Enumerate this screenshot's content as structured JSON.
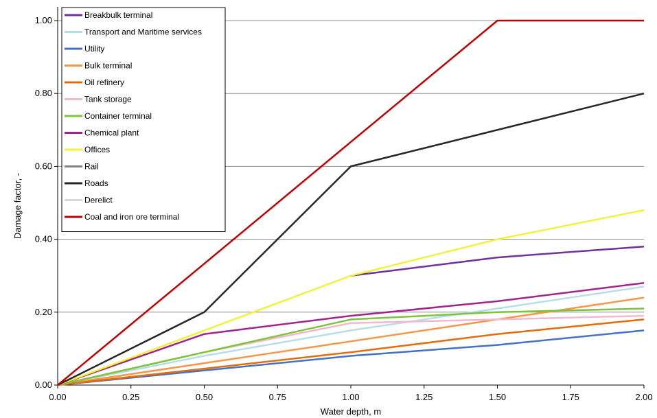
{
  "chart_data": {
    "type": "line",
    "xlabel": "Water depth, m",
    "ylabel": "Damage factor, -",
    "xlim": [
      0,
      2
    ],
    "ylim": [
      0,
      1
    ],
    "x_ticks": [
      "0.00",
      "0.25",
      "0.50",
      "0.75",
      "1.00",
      "1.25",
      "1.50",
      "1.75",
      "2.00"
    ],
    "y_ticks": [
      "0.00",
      "0.20",
      "0.40",
      "0.60",
      "0.80",
      "1.00"
    ],
    "grid": "horizontal",
    "legend_position": "top-left",
    "series": [
      {
        "name": "Breakbulk terminal",
        "color": "#7030A0",
        "x": [
          1.0,
          1.5,
          2.0
        ],
        "y": [
          0.3,
          0.35,
          0.38
        ]
      },
      {
        "name": "Transport and Maritime services",
        "color": "#B7DEE8",
        "x": [
          0,
          0.5,
          1.0,
          1.5,
          2.0
        ],
        "y": [
          0,
          0.08,
          0.15,
          0.21,
          0.27
        ]
      },
      {
        "name": "Utility",
        "color": "#4472C4",
        "x": [
          0,
          0.5,
          1.0,
          1.5,
          2.0
        ],
        "y": [
          0,
          0.04,
          0.08,
          0.11,
          0.15
        ]
      },
      {
        "name": "Bulk terminal",
        "color": "#F79646",
        "x": [
          0,
          0.5,
          1.0,
          1.5,
          2.0
        ],
        "y": [
          0,
          0.06,
          0.12,
          0.18,
          0.24
        ]
      },
      {
        "name": "Oil refinery",
        "color": "#E46C0A",
        "x": [
          0,
          0.5,
          1.0,
          1.5,
          2.0
        ],
        "y": [
          0,
          0.045,
          0.09,
          0.14,
          0.18
        ]
      },
      {
        "name": "Tank storage",
        "color": "#F2B8D0",
        "x": [
          0,
          0.5,
          1.0,
          1.5,
          2.0
        ],
        "y": [
          0,
          0.09,
          0.17,
          0.18,
          0.19
        ]
      },
      {
        "name": "Container terminal",
        "color": "#7DC43A",
        "x": [
          0,
          0.5,
          1.0,
          1.5,
          2.0
        ],
        "y": [
          0,
          0.09,
          0.18,
          0.2,
          0.21
        ]
      },
      {
        "name": "Chemical plant",
        "color": "#A0248C",
        "x": [
          0,
          0.5,
          1.0,
          1.5,
          2.0
        ],
        "y": [
          0,
          0.14,
          0.19,
          0.23,
          0.28
        ]
      },
      {
        "name": "Offices",
        "color": "#F2F23A",
        "x": [
          0,
          0.5,
          1.0,
          1.5,
          2.0
        ],
        "y": [
          0,
          0.15,
          0.3,
          0.4,
          0.48
        ]
      },
      {
        "name": "Rail",
        "color": "#808080",
        "x": [],
        "y": []
      },
      {
        "name": "Roads",
        "color": "#262626",
        "x": [
          0,
          0.5,
          1.0,
          2.0
        ],
        "y": [
          0,
          0.2,
          0.6,
          0.8
        ]
      },
      {
        "name": "Derelict",
        "color": "#D9D9D9",
        "x": [],
        "y": []
      },
      {
        "name": "Coal and iron ore terminal",
        "color": "#C00000",
        "x": [
          0,
          0.5,
          1.0,
          1.5,
          1.75,
          2.0
        ],
        "y": [
          0,
          0.333,
          0.667,
          1.0,
          1.0,
          1.0
        ]
      }
    ]
  }
}
